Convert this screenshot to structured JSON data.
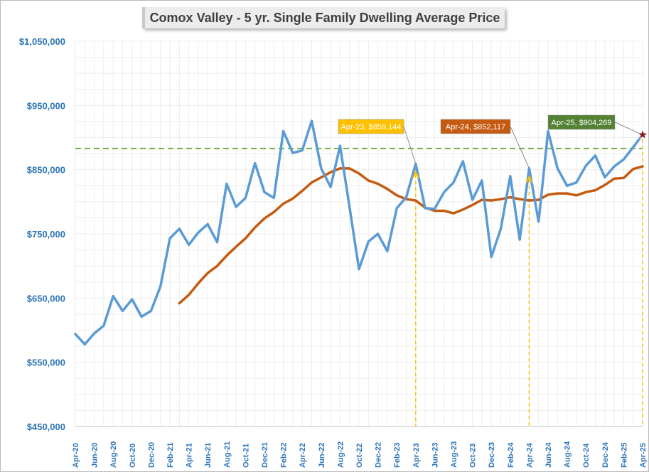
{
  "chart_data": {
    "type": "line",
    "title": "Comox Valley - 5 yr. Single Family Dwelling Average Price",
    "ylim": [
      450000,
      1050000
    ],
    "yticks": [
      "$450,000",
      "$550,000",
      "$650,000",
      "$750,000",
      "$850,000",
      "$950,000",
      "$1,050,000"
    ],
    "ytick_values": [
      450000,
      550000,
      650000,
      750000,
      850000,
      950000,
      1050000
    ],
    "grid": true,
    "x": [
      "Apr-20",
      "May-20",
      "Jun-20",
      "Jul-20",
      "Aug-20",
      "Sep-20",
      "Oct-20",
      "Nov-20",
      "Dec-20",
      "Jan-21",
      "Feb-21",
      "Mar-21",
      "Apr-21",
      "May-21",
      "Jun-21",
      "Jul-21",
      "Aug-21",
      "Sep-21",
      "Oct-21",
      "Nov-21",
      "Dec-21",
      "Jan-22",
      "Feb-22",
      "Mar-22",
      "Apr-22",
      "May-22",
      "Jun-22",
      "Jul-22",
      "Aug-22",
      "Sep-22",
      "Oct-22",
      "Nov-22",
      "Dec-22",
      "Jan-23",
      "Feb-23",
      "Mar-23",
      "Apr-23",
      "May-23",
      "Jun-23",
      "Jul-23",
      "Aug-23",
      "Sep-23",
      "Oct-23",
      "Nov-23",
      "Dec-23",
      "Jan-24",
      "Feb-24",
      "Mar-24",
      "Apr-24",
      "May-24",
      "Jun-24",
      "Jul-24",
      "Aug-24",
      "Sep-24",
      "Oct-24",
      "Nov-24",
      "Dec-24",
      "Jan-25",
      "Feb-25",
      "Mar-25",
      "Apr-25"
    ],
    "x_tick_labels": [
      "Apr-20",
      "Jun-20",
      "Aug-20",
      "Oct-20",
      "Dec-20",
      "Feb-21",
      "Apr-21",
      "Jun-21",
      "Aug-21",
      "Oct-21",
      "Dec-21",
      "Feb-22",
      "Apr-22",
      "Jun-22",
      "Aug-22",
      "Oct-22",
      "Dec-22",
      "Feb-23",
      "Apr-23",
      "Jun-23",
      "Aug-23",
      "Oct-23",
      "Dec-23",
      "Feb-24",
      "Apr-24",
      "Jun-24",
      "Aug-24",
      "Oct-24",
      "Dec-24",
      "Feb-25",
      "Apr-25"
    ],
    "series": [
      {
        "color": "#5b9bd5",
        "values": [
          594000,
          578000,
          595000,
          607000,
          653000,
          630000,
          648000,
          621000,
          630000,
          668000,
          743000,
          758000,
          733000,
          752000,
          765000,
          737000,
          828000,
          792000,
          806000,
          860000,
          815000,
          806000,
          910000,
          876000,
          880000,
          926000,
          852000,
          823000,
          887000,
          792000,
          695000,
          738000,
          750000,
          723000,
          790000,
          807000,
          859144,
          790000,
          789000,
          815000,
          830000,
          863000,
          803000,
          833000,
          714000,
          758000,
          840000,
          741000,
          852117,
          769000,
          910000,
          852000,
          825000,
          830000,
          856000,
          872000,
          838000,
          855000,
          866000,
          885000,
          904269
        ]
      },
      {
        "color": "#c55a11",
        "values": [
          null,
          null,
          null,
          null,
          null,
          null,
          null,
          null,
          null,
          null,
          null,
          642000,
          655000,
          673000,
          689000,
          700000,
          716000,
          730000,
          743000,
          760000,
          774000,
          784000,
          797000,
          805000,
          817000,
          830000,
          838000,
          846000,
          852000,
          852000,
          844000,
          833000,
          828000,
          820000,
          810000,
          804000,
          802000,
          791000,
          786000,
          786000,
          782000,
          788000,
          795000,
          803000,
          802000,
          804000,
          807000,
          804000,
          802000,
          803000,
          811000,
          813000,
          813000,
          810000,
          815000,
          818000,
          826000,
          836000,
          837000,
          851000,
          855000
        ]
      }
    ],
    "reference_line": {
      "value": 883000,
      "color": "#70ad47"
    },
    "annotations": [
      {
        "text": "Apr-23, $859,144",
        "x": "Apr-23",
        "y": 859144,
        "bg": "#ffc000",
        "fg": "#ffffff"
      },
      {
        "text": "Apr-24, $852,117",
        "x": "Apr-24",
        "y": 852117,
        "bg": "#c55a11",
        "fg": "#ffffff"
      },
      {
        "text": "Apr-25, $904,269",
        "x": "Apr-25",
        "y": 904269,
        "bg": "#548235",
        "fg": "#ffffff"
      }
    ],
    "marker": {
      "x": "Apr-25",
      "y": 904269,
      "shape": "star",
      "color": "#8b1a2e"
    }
  }
}
